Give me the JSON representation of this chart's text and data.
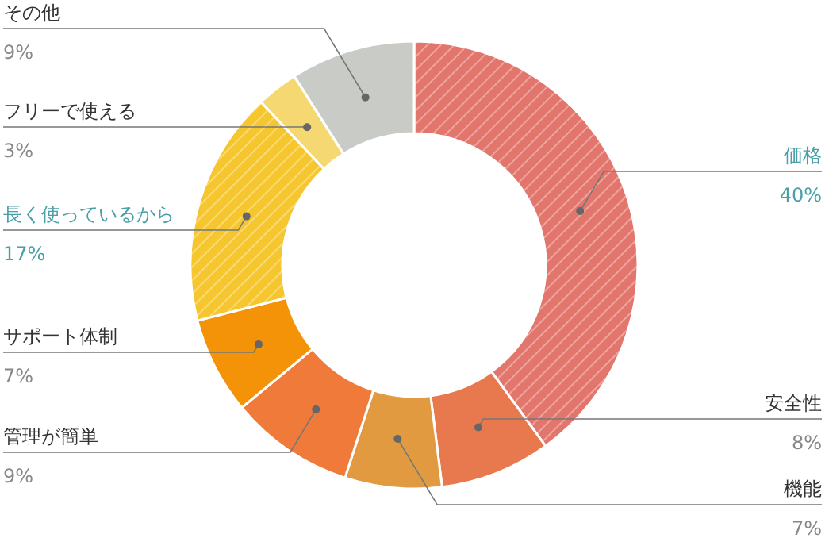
{
  "chart_data": {
    "type": "donut",
    "categories": [
      "価格",
      "安全性",
      "機能",
      "管理が簡単",
      "サポート体制",
      "長く使っているから",
      "フリーで使える",
      "その他"
    ],
    "values": [
      40,
      8,
      7,
      9,
      7,
      17,
      3,
      9
    ],
    "colors": [
      "#e2756c",
      "#e8794f",
      "#e29a40",
      "#ef7a3a",
      "#f49308",
      "#f6c62e",
      "#f6d872",
      "#c9cbc7"
    ],
    "value_labels": [
      "40%",
      "8%",
      "7%",
      "9%",
      "7%",
      "17%",
      "3%",
      "9%"
    ]
  }
}
